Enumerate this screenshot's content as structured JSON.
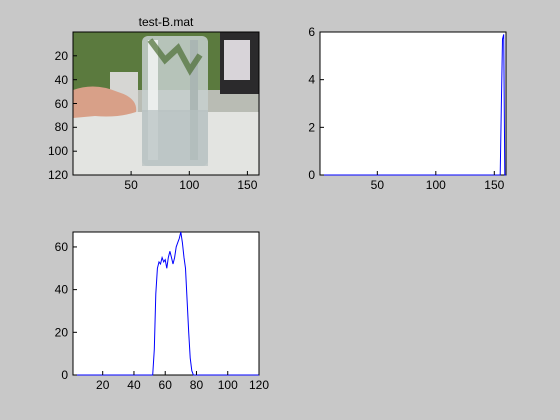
{
  "figure": {
    "background": "#c8c8c8",
    "line_color": "#0000ff"
  },
  "subplot1": {
    "title": "test-B.mat",
    "content": "camera frame: hand next to a clear water glass on a table",
    "xticks": [
      "50",
      "100",
      "150"
    ],
    "yticks": [
      "20",
      "40",
      "60",
      "80",
      "100",
      "120"
    ]
  },
  "chart_data": [
    {
      "type": "line",
      "title": "",
      "xlabel": "",
      "ylabel": "",
      "xlim": [
        1,
        160
      ],
      "ylim": [
        0,
        6
      ],
      "xticks": [
        "50",
        "100",
        "150"
      ],
      "yticks": [
        "0",
        "2",
        "4",
        "6"
      ],
      "series": [
        {
          "x": [
            1,
            100,
            154,
            155,
            156,
            157,
            158,
            159,
            160
          ],
          "values": [
            0,
            0,
            0,
            0,
            2.8,
            5.7,
            5.9,
            0,
            0
          ]
        }
      ]
    },
    {
      "type": "line",
      "title": "",
      "xlabel": "",
      "ylabel": "",
      "xlim": [
        1,
        120
      ],
      "ylim": [
        0,
        67
      ],
      "xticks": [
        "20",
        "40",
        "60",
        "80",
        "100",
        "120"
      ],
      "yticks": [
        "0",
        "20",
        "40",
        "60"
      ],
      "series": [
        {
          "x": [
            1,
            52,
            53,
            54,
            55,
            56,
            57,
            58,
            59,
            60,
            61,
            62,
            63,
            64,
            65,
            66,
            67,
            68,
            69,
            70,
            71,
            72,
            73,
            74,
            75,
            76,
            77,
            78,
            120
          ],
          "values": [
            0,
            0,
            12,
            38,
            50,
            53,
            52,
            55,
            53,
            54,
            50,
            55,
            58,
            55,
            52,
            55,
            60,
            62,
            64,
            67,
            62,
            55,
            50,
            35,
            20,
            8,
            2,
            0,
            0
          ]
        }
      ]
    }
  ]
}
